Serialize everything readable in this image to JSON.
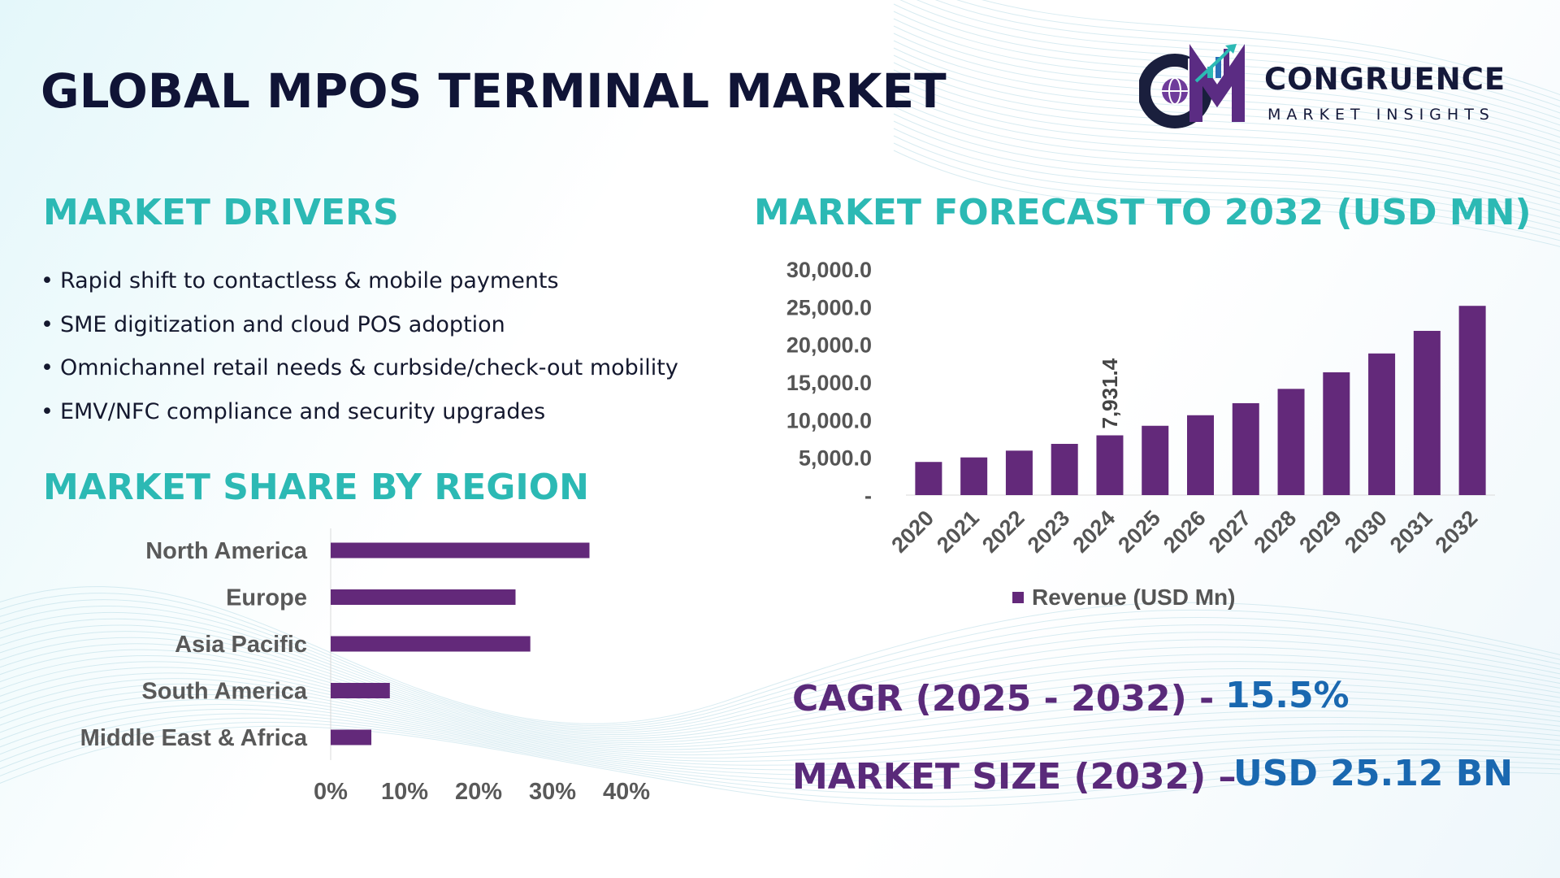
{
  "header": {
    "title": "GLOBAL MPOS TERMINAL MARKET"
  },
  "logo": {
    "name": "CONGRUENCE",
    "tagline": "MARKET INSIGHTS",
    "mark_letters": "CM"
  },
  "drivers": {
    "heading": "MARKET DRIVERS",
    "items": [
      "Rapid shift to contactless & mobile payments",
      "SME digitization and cloud POS adoption",
      "Omnichannel retail needs & curbside/check-out mobility",
      "EMV/NFC compliance and security upgrades"
    ]
  },
  "region": {
    "heading": "MARKET SHARE BY REGION"
  },
  "forecast": {
    "heading": "MARKET FORECAST TO 2032 (USD MN)"
  },
  "stats": {
    "cagr_label": "CAGR (2025 - 2032) -",
    "cagr_value": "15.5%",
    "size_label": "MARKET SIZE (2032) –",
    "size_value": "USD 25.12 BN"
  },
  "colors": {
    "bar": "#63297a",
    "heading": "#2cb9b4",
    "title": "#101436",
    "stat_label": "#5a2a7a",
    "stat_value": "#1a68b0"
  },
  "chart_data": [
    {
      "type": "bar",
      "orientation": "vertical",
      "categories": [
        "2020",
        "2021",
        "2022",
        "2023",
        "2024",
        "2025",
        "2026",
        "2027",
        "2028",
        "2029",
        "2030",
        "2031",
        "2032"
      ],
      "series": [
        {
          "name": "Revenue (USD Mn)",
          "values": [
            4400,
            5000,
            5900,
            6800,
            7931.4,
            9200,
            10600,
            12200,
            14100,
            16300,
            18800,
            21800,
            25120
          ]
        }
      ],
      "yticks": [
        "-",
        "5,000.0",
        "10,000.0",
        "15,000.0",
        "20,000.0",
        "25,000.0",
        "30,000.0"
      ],
      "ylim": [
        0,
        30000
      ],
      "data_labels": [
        {
          "category": "2024",
          "text": "7,931.4"
        }
      ],
      "legend": "bottom"
    },
    {
      "type": "bar",
      "orientation": "horizontal",
      "categories": [
        "North America",
        "Europe",
        "Asia Pacific",
        "South America",
        "Middle East & Africa"
      ],
      "values": [
        35,
        25,
        27,
        8,
        5.5
      ],
      "xticks": [
        "0%",
        "10%",
        "20%",
        "30%",
        "40%"
      ],
      "xlim": [
        0,
        40
      ]
    }
  ]
}
